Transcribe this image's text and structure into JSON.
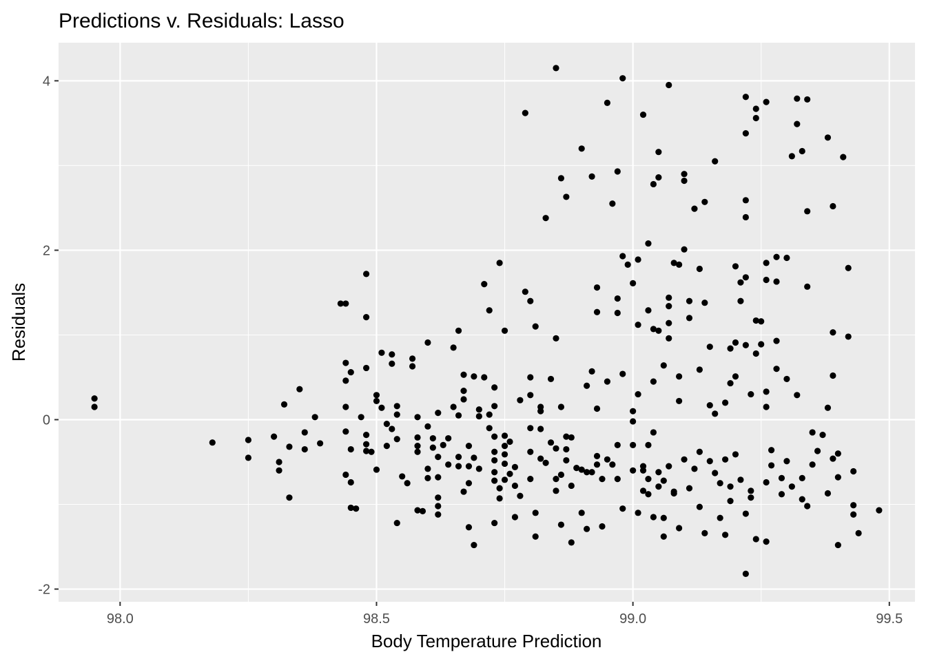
{
  "chart_data": {
    "type": "scatter",
    "title": "Predictions v. Residuals: Lasso",
    "xlabel": "Body Temperature Prediction",
    "ylabel": "Residuals",
    "xlim": [
      97.88,
      99.55
    ],
    "ylim": [
      -2.15,
      4.45
    ],
    "x_ticks": [
      98.0,
      98.5,
      99.0,
      99.5
    ],
    "x_tick_labels": [
      "98.0",
      "98.5",
      "99.0",
      "99.5"
    ],
    "y_ticks": [
      -2,
      0,
      2,
      4
    ],
    "y_tick_labels": [
      "-2",
      "0",
      "2",
      "4"
    ],
    "grid": true,
    "legend": "none",
    "panel_color": "#ebebeb",
    "grid_color": "#ffffff",
    "point_color": "#000000",
    "points": [
      [
        97.95,
        0.25
      ],
      [
        97.95,
        0.15
      ],
      [
        98.18,
        -0.27
      ],
      [
        98.25,
        -0.24
      ],
      [
        98.25,
        -0.45
      ],
      [
        98.3,
        -0.2
      ],
      [
        98.31,
        -0.5
      ],
      [
        98.31,
        -0.6
      ],
      [
        98.32,
        0.18
      ],
      [
        98.33,
        -0.32
      ],
      [
        98.33,
        -0.92
      ],
      [
        98.35,
        0.36
      ],
      [
        98.36,
        -0.15
      ],
      [
        98.36,
        -0.35
      ],
      [
        98.38,
        0.03
      ],
      [
        98.39,
        -0.28
      ],
      [
        98.43,
        1.37
      ],
      [
        98.44,
        1.37
      ],
      [
        98.44,
        0.67
      ],
      [
        98.44,
        0.46
      ],
      [
        98.44,
        0.15
      ],
      [
        98.44,
        -0.14
      ],
      [
        98.44,
        -0.65
      ],
      [
        98.45,
        0.56
      ],
      [
        98.45,
        -0.35
      ],
      [
        98.45,
        -0.74
      ],
      [
        98.45,
        -1.04
      ],
      [
        98.46,
        -1.05
      ],
      [
        98.47,
        0.03
      ],
      [
        98.48,
        1.72
      ],
      [
        98.48,
        1.21
      ],
      [
        98.48,
        0.61
      ],
      [
        98.48,
        -0.18
      ],
      [
        98.48,
        -0.29
      ],
      [
        98.48,
        -0.37
      ],
      [
        98.49,
        -0.38
      ],
      [
        98.5,
        -0.59
      ],
      [
        98.5,
        0.29
      ],
      [
        98.5,
        0.22
      ],
      [
        98.51,
        0.79
      ],
      [
        98.51,
        0.14
      ],
      [
        98.52,
        -0.31
      ],
      [
        98.52,
        -0.05
      ],
      [
        98.53,
        0.77
      ],
      [
        98.53,
        0.66
      ],
      [
        98.53,
        -0.11
      ],
      [
        98.54,
        -0.23
      ],
      [
        98.54,
        -1.22
      ],
      [
        98.54,
        0.16
      ],
      [
        98.54,
        0.06
      ],
      [
        98.55,
        -0.67
      ],
      [
        98.56,
        -0.75
      ],
      [
        98.57,
        0.63
      ],
      [
        98.57,
        0.72
      ],
      [
        98.58,
        0.03
      ],
      [
        98.58,
        -0.21
      ],
      [
        98.58,
        -0.31
      ],
      [
        98.58,
        -0.38
      ],
      [
        98.58,
        -1.07
      ],
      [
        98.59,
        -1.08
      ],
      [
        98.6,
        0.91
      ],
      [
        98.6,
        -0.08
      ],
      [
        98.6,
        -0.58
      ],
      [
        98.6,
        -0.69
      ],
      [
        98.61,
        -0.33
      ],
      [
        98.61,
        -0.22
      ],
      [
        98.62,
        0.08
      ],
      [
        98.62,
        -0.44
      ],
      [
        98.62,
        -0.68
      ],
      [
        98.62,
        -0.92
      ],
      [
        98.62,
        -1.02
      ],
      [
        98.62,
        -1.12
      ],
      [
        98.63,
        -0.3
      ],
      [
        98.64,
        -0.22
      ],
      [
        98.64,
        -0.53
      ],
      [
        98.65,
        0.85
      ],
      [
        98.65,
        0.15
      ],
      [
        98.66,
        1.05
      ],
      [
        98.66,
        0.05
      ],
      [
        98.66,
        -0.44
      ],
      [
        98.66,
        -0.55
      ],
      [
        98.67,
        -0.85
      ],
      [
        98.67,
        0.53
      ],
      [
        98.67,
        0.34
      ],
      [
        98.67,
        0.24
      ],
      [
        98.68,
        -0.31
      ],
      [
        98.68,
        -0.55
      ],
      [
        98.68,
        -0.75
      ],
      [
        98.68,
        -1.27
      ],
      [
        98.69,
        -1.48
      ],
      [
        98.69,
        0.51
      ],
      [
        98.69,
        -0.45
      ],
      [
        98.7,
        -0.58
      ],
      [
        98.7,
        0.04
      ],
      [
        98.7,
        0.12
      ],
      [
        98.71,
        1.6
      ],
      [
        98.71,
        0.5
      ],
      [
        98.72,
        1.29
      ],
      [
        98.72,
        0.06
      ],
      [
        98.72,
        -0.1
      ],
      [
        98.73,
        0.38
      ],
      [
        98.73,
        0.16
      ],
      [
        98.73,
        -0.2
      ],
      [
        98.73,
        -0.38
      ],
      [
        98.73,
        -0.48
      ],
      [
        98.73,
        -0.62
      ],
      [
        98.73,
        -0.72
      ],
      [
        98.73,
        -1.22
      ],
      [
        98.74,
        1.85
      ],
      [
        98.74,
        -0.81
      ],
      [
        98.74,
        -0.93
      ],
      [
        98.75,
        1.05
      ],
      [
        98.75,
        -0.19
      ],
      [
        98.75,
        -0.31
      ],
      [
        98.75,
        -0.41
      ],
      [
        98.75,
        -0.52
      ],
      [
        98.75,
        -0.71
      ],
      [
        98.76,
        -0.26
      ],
      [
        98.76,
        -0.64
      ],
      [
        98.77,
        -0.56
      ],
      [
        98.77,
        -0.78
      ],
      [
        98.77,
        -1.15
      ],
      [
        98.78,
        -0.9
      ],
      [
        98.78,
        0.23
      ],
      [
        98.79,
        3.62
      ],
      [
        98.79,
        1.51
      ],
      [
        98.8,
        1.4
      ],
      [
        98.8,
        0.5
      ],
      [
        98.8,
        0.29
      ],
      [
        98.8,
        -0.1
      ],
      [
        98.8,
        -0.38
      ],
      [
        98.8,
        -0.7
      ],
      [
        98.81,
        -1.38
      ],
      [
        98.81,
        -1.1
      ],
      [
        98.81,
        1.1
      ],
      [
        98.82,
        0.15
      ],
      [
        98.82,
        0.1
      ],
      [
        98.82,
        -0.11
      ],
      [
        98.82,
        -0.46
      ],
      [
        98.83,
        2.38
      ],
      [
        98.83,
        -0.51
      ],
      [
        98.84,
        0.48
      ],
      [
        98.84,
        -0.27
      ],
      [
        98.85,
        0.96
      ],
      [
        98.85,
        -0.34
      ],
      [
        98.85,
        -0.7
      ],
      [
        98.85,
        -0.84
      ],
      [
        98.85,
        4.15
      ],
      [
        98.86,
        2.85
      ],
      [
        98.86,
        0.15
      ],
      [
        98.86,
        -0.65
      ],
      [
        98.86,
        -1.24
      ],
      [
        98.87,
        -0.2
      ],
      [
        98.87,
        -0.35
      ],
      [
        98.87,
        2.63
      ],
      [
        98.87,
        -0.48
      ],
      [
        98.88,
        -0.78
      ],
      [
        98.88,
        -1.45
      ],
      [
        98.88,
        -0.21
      ],
      [
        98.89,
        -0.57
      ],
      [
        98.9,
        3.2
      ],
      [
        98.9,
        -0.59
      ],
      [
        98.9,
        -1.1
      ],
      [
        98.91,
        0.4
      ],
      [
        98.91,
        -0.62
      ],
      [
        98.91,
        -1.29
      ],
      [
        98.92,
        2.87
      ],
      [
        98.92,
        0.57
      ],
      [
        98.92,
        -0.62
      ],
      [
        98.93,
        1.56
      ],
      [
        98.93,
        1.27
      ],
      [
        98.93,
        0.13
      ],
      [
        98.93,
        -0.43
      ],
      [
        98.93,
        -0.53
      ],
      [
        98.94,
        -0.7
      ],
      [
        98.94,
        -1.26
      ],
      [
        98.95,
        3.74
      ],
      [
        98.95,
        0.45
      ],
      [
        98.95,
        -0.47
      ],
      [
        98.96,
        2.55
      ],
      [
        98.96,
        -0.53
      ],
      [
        98.97,
        2.93
      ],
      [
        98.97,
        1.43
      ],
      [
        98.97,
        1.26
      ],
      [
        98.97,
        -0.3
      ],
      [
        98.97,
        -0.7
      ],
      [
        98.98,
        4.03
      ],
      [
        98.98,
        1.93
      ],
      [
        98.98,
        0.54
      ],
      [
        98.98,
        -1.05
      ],
      [
        98.99,
        1.83
      ],
      [
        99.0,
        1.61
      ],
      [
        99.0,
        0.1
      ],
      [
        99.0,
        -0.02
      ],
      [
        99.0,
        -0.3
      ],
      [
        99.0,
        -0.6
      ],
      [
        99.01,
        1.89
      ],
      [
        99.01,
        1.12
      ],
      [
        99.01,
        0.3
      ],
      [
        99.01,
        -1.1
      ],
      [
        99.02,
        3.6
      ],
      [
        99.02,
        -0.55
      ],
      [
        99.02,
        -0.84
      ],
      [
        99.03,
        2.08
      ],
      [
        99.03,
        1.29
      ],
      [
        99.03,
        -0.3
      ],
      [
        99.03,
        -0.88
      ],
      [
        99.04,
        2.78
      ],
      [
        99.04,
        1.07
      ],
      [
        99.04,
        0.45
      ],
      [
        99.04,
        -0.15
      ],
      [
        99.04,
        -1.15
      ],
      [
        99.05,
        3.16
      ],
      [
        99.05,
        2.86
      ],
      [
        99.05,
        1.05
      ],
      [
        99.05,
        -0.79
      ],
      [
        99.06,
        -1.16
      ],
      [
        99.06,
        -1.38
      ],
      [
        99.06,
        0.64
      ],
      [
        99.07,
        1.44
      ],
      [
        99.07,
        1.34
      ],
      [
        99.07,
        1.14
      ],
      [
        99.07,
        0.96
      ],
      [
        99.07,
        3.95
      ],
      [
        99.07,
        -0.55
      ],
      [
        99.08,
        -0.87
      ],
      [
        99.08,
        1.85
      ],
      [
        99.09,
        1.83
      ],
      [
        99.09,
        0.51
      ],
      [
        99.09,
        0.22
      ],
      [
        99.09,
        -1.28
      ],
      [
        99.1,
        2.82
      ],
      [
        99.1,
        2.9
      ],
      [
        99.1,
        2.01
      ],
      [
        99.1,
        -0.47
      ],
      [
        99.11,
        1.4
      ],
      [
        99.11,
        1.2
      ],
      [
        99.11,
        -0.81
      ],
      [
        99.12,
        2.49
      ],
      [
        99.13,
        1.78
      ],
      [
        99.13,
        0.59
      ],
      [
        99.13,
        -1.03
      ],
      [
        99.14,
        2.57
      ],
      [
        99.14,
        1.38
      ],
      [
        99.14,
        -1.34
      ],
      [
        99.15,
        0.17
      ],
      [
        99.15,
        0.86
      ],
      [
        99.16,
        3.05
      ],
      [
        99.16,
        0.07
      ],
      [
        99.17,
        -0.75
      ],
      [
        99.17,
        -1.16
      ],
      [
        99.18,
        0.2
      ],
      [
        99.18,
        -0.47
      ],
      [
        99.18,
        -1.36
      ],
      [
        99.19,
        0.84
      ],
      [
        99.19,
        0.43
      ],
      [
        99.19,
        -0.96
      ],
      [
        99.2,
        1.81
      ],
      [
        99.2,
        0.91
      ],
      [
        99.2,
        0.51
      ],
      [
        99.2,
        -0.41
      ],
      [
        99.21,
        1.62
      ],
      [
        99.21,
        1.4
      ],
      [
        99.22,
        3.81
      ],
      [
        99.22,
        3.38
      ],
      [
        99.22,
        2.59
      ],
      [
        99.22,
        2.39
      ],
      [
        99.22,
        1.68
      ],
      [
        99.22,
        0.88
      ],
      [
        99.22,
        -1.11
      ],
      [
        99.22,
        -1.82
      ],
      [
        99.23,
        -0.84
      ],
      [
        99.23,
        0.3
      ],
      [
        99.24,
        3.67
      ],
      [
        99.24,
        3.56
      ],
      [
        99.24,
        1.17
      ],
      [
        99.24,
        0.78
      ],
      [
        99.24,
        -1.41
      ],
      [
        99.25,
        1.16
      ],
      [
        99.25,
        0.89
      ],
      [
        99.26,
        3.75
      ],
      [
        99.26,
        1.85
      ],
      [
        99.26,
        1.65
      ],
      [
        99.26,
        0.33
      ],
      [
        99.26,
        0.15
      ],
      [
        99.26,
        -0.74
      ],
      [
        99.26,
        -1.44
      ],
      [
        99.27,
        -0.36
      ],
      [
        99.27,
        -0.54
      ],
      [
        99.28,
        1.92
      ],
      [
        99.28,
        1.63
      ],
      [
        99.28,
        0.93
      ],
      [
        99.28,
        0.6
      ],
      [
        99.29,
        -0.69
      ],
      [
        99.29,
        -0.88
      ],
      [
        99.3,
        1.91
      ],
      [
        99.3,
        0.48
      ],
      [
        99.3,
        -0.49
      ],
      [
        99.31,
        3.11
      ],
      [
        99.31,
        -0.79
      ],
      [
        99.32,
        3.79
      ],
      [
        99.32,
        3.49
      ],
      [
        99.32,
        0.29
      ],
      [
        99.33,
        3.17
      ],
      [
        99.33,
        -0.69
      ],
      [
        99.33,
        -0.94
      ],
      [
        99.34,
        3.78
      ],
      [
        99.34,
        2.46
      ],
      [
        99.34,
        1.57
      ],
      [
        99.34,
        -1.02
      ],
      [
        99.35,
        -0.53
      ],
      [
        99.35,
        -0.15
      ],
      [
        99.36,
        -0.37
      ],
      [
        99.37,
        -0.18
      ],
      [
        99.38,
        3.33
      ],
      [
        99.38,
        0.14
      ],
      [
        99.38,
        -0.87
      ],
      [
        99.39,
        1.03
      ],
      [
        99.39,
        2.52
      ],
      [
        99.39,
        0.52
      ],
      [
        99.39,
        -0.46
      ],
      [
        99.4,
        -0.4
      ],
      [
        99.4,
        -0.68
      ],
      [
        99.4,
        -1.48
      ],
      [
        99.41,
        3.1
      ],
      [
        99.42,
        1.79
      ],
      [
        99.42,
        0.98
      ],
      [
        99.43,
        -0.61
      ],
      [
        99.43,
        -1.01
      ],
      [
        99.43,
        -1.12
      ],
      [
        99.44,
        -1.34
      ],
      [
        99.48,
        -1.07
      ],
      [
        99.02,
        -0.6
      ],
      [
        99.03,
        -0.7
      ],
      [
        99.05,
        -0.62
      ],
      [
        99.06,
        -0.72
      ],
      [
        99.08,
        -0.85
      ],
      [
        99.12,
        -0.58
      ],
      [
        99.15,
        -0.49
      ],
      [
        99.19,
        -0.79
      ],
      [
        99.21,
        -0.71
      ],
      [
        99.23,
        -0.92
      ],
      [
        99.13,
        -0.38
      ],
      [
        99.16,
        -0.63
      ]
    ]
  }
}
